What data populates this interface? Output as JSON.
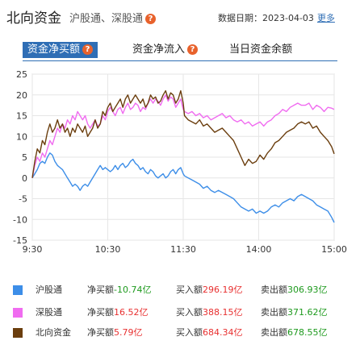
{
  "header": {
    "title": "北向资金",
    "subtitle": "沪股通、深股通",
    "date_label": "数据日期：",
    "date": "2023-04-03",
    "more": "更多"
  },
  "tabs": [
    {
      "label": "资金净买额",
      "active": true
    },
    {
      "label": "资金净流入",
      "active": false
    },
    {
      "label": "当日资金余额",
      "active": false
    }
  ],
  "legend": [
    {
      "name": "沪股通",
      "color": "#3d8ee8",
      "net_label": "净买额",
      "net": "-10.74亿",
      "buy_label": "买入额",
      "buy": "296.19亿",
      "sell_label": "卖出额",
      "sell": "306.93亿"
    },
    {
      "name": "深股通",
      "color": "#f06cf0",
      "net_label": "净买额",
      "net": "16.52亿",
      "buy_label": "买入额",
      "buy": "388.15亿",
      "sell_label": "卖出额",
      "sell": "371.62亿"
    },
    {
      "name": "北向资金",
      "color": "#6b3e0e",
      "net_label": "净买额",
      "net": "5.79亿",
      "buy_label": "买入额",
      "buy": "684.34亿",
      "sell_label": "卖出额",
      "sell": "678.55亿"
    }
  ],
  "chart_data": {
    "type": "line",
    "xticks": [
      "9:30",
      "10:30",
      "11:30",
      "14:00",
      "15:00"
    ],
    "ylim": [
      -15,
      25
    ],
    "yticks": [
      25,
      20,
      15,
      10,
      5,
      0,
      -5,
      -10,
      -15
    ],
    "x_count": 241,
    "series": [
      {
        "name": "沪股通",
        "color": "#3d8ee8",
        "points": [
          [
            0,
            0
          ],
          [
            2,
            1
          ],
          [
            4,
            2
          ],
          [
            6,
            3.5
          ],
          [
            8,
            4
          ],
          [
            10,
            3.5
          ],
          [
            12,
            5
          ],
          [
            14,
            6
          ],
          [
            16,
            5.5
          ],
          [
            18,
            4
          ],
          [
            20,
            3
          ],
          [
            22,
            2.5
          ],
          [
            24,
            2
          ],
          [
            26,
            1
          ],
          [
            28,
            0
          ],
          [
            30,
            -1
          ],
          [
            32,
            -2
          ],
          [
            34,
            -1.5
          ],
          [
            36,
            -2
          ],
          [
            38,
            -3
          ],
          [
            40,
            -2
          ],
          [
            42,
            -1.5
          ],
          [
            44,
            -2
          ],
          [
            46,
            -1
          ],
          [
            48,
            0
          ],
          [
            50,
            1
          ],
          [
            52,
            2
          ],
          [
            54,
            3
          ],
          [
            56,
            2
          ],
          [
            58,
            2.5
          ],
          [
            60,
            2
          ],
          [
            62,
            1.5
          ],
          [
            64,
            2
          ],
          [
            66,
            3
          ],
          [
            68,
            2
          ],
          [
            70,
            3
          ],
          [
            72,
            3.5
          ],
          [
            74,
            2.5
          ],
          [
            76,
            3
          ],
          [
            78,
            4
          ],
          [
            80,
            4.5
          ],
          [
            82,
            3.5
          ],
          [
            84,
            3
          ],
          [
            86,
            2
          ],
          [
            88,
            2.5
          ],
          [
            90,
            1.5
          ],
          [
            92,
            1
          ],
          [
            94,
            2
          ],
          [
            96,
            1.5
          ],
          [
            98,
            0.5
          ],
          [
            100,
            0
          ],
          [
            102,
            0.5
          ],
          [
            104,
            1
          ],
          [
            106,
            0
          ],
          [
            108,
            0.5
          ],
          [
            110,
            1.5
          ],
          [
            112,
            2
          ],
          [
            114,
            1
          ],
          [
            116,
            2
          ],
          [
            118,
            2.5
          ],
          [
            120,
            1
          ],
          [
            121,
            0.5
          ],
          [
            124,
            0
          ],
          [
            127,
            -0.5
          ],
          [
            130,
            -1
          ],
          [
            133,
            -1.5
          ],
          [
            136,
            -2.5
          ],
          [
            139,
            -2
          ],
          [
            142,
            -3
          ],
          [
            145,
            -3.5
          ],
          [
            148,
            -3
          ],
          [
            151,
            -3.5
          ],
          [
            154,
            -4
          ],
          [
            157,
            -4.5
          ],
          [
            160,
            -5
          ],
          [
            163,
            -6
          ],
          [
            166,
            -7
          ],
          [
            169,
            -7.5
          ],
          [
            172,
            -8
          ],
          [
            175,
            -7.5
          ],
          [
            178,
            -8.5
          ],
          [
            181,
            -8
          ],
          [
            184,
            -8.5
          ],
          [
            187,
            -8
          ],
          [
            190,
            -7
          ],
          [
            193,
            -6.5
          ],
          [
            196,
            -7
          ],
          [
            199,
            -6
          ],
          [
            202,
            -5.5
          ],
          [
            205,
            -5
          ],
          [
            208,
            -5.5
          ],
          [
            211,
            -4.5
          ],
          [
            214,
            -4
          ],
          [
            217,
            -4.5
          ],
          [
            220,
            -5
          ],
          [
            223,
            -5.5
          ],
          [
            226,
            -6.5
          ],
          [
            229,
            -7
          ],
          [
            232,
            -7.5
          ],
          [
            235,
            -8
          ],
          [
            238,
            -9.5
          ],
          [
            240,
            -10.74
          ]
        ]
      },
      {
        "name": "深股通",
        "color": "#f06cf0",
        "points": [
          [
            0,
            0
          ],
          [
            2,
            3
          ],
          [
            4,
            5
          ],
          [
            6,
            4
          ],
          [
            8,
            6
          ],
          [
            10,
            5
          ],
          [
            12,
            7
          ],
          [
            14,
            9
          ],
          [
            16,
            8
          ],
          [
            18,
            10
          ],
          [
            20,
            12
          ],
          [
            22,
            11
          ],
          [
            24,
            13
          ],
          [
            26,
            12
          ],
          [
            28,
            14
          ],
          [
            30,
            13
          ],
          [
            32,
            15
          ],
          [
            34,
            14
          ],
          [
            36,
            16
          ],
          [
            38,
            15
          ],
          [
            40,
            14
          ],
          [
            42,
            15
          ],
          [
            44,
            13
          ],
          [
            46,
            12
          ],
          [
            48,
            13
          ],
          [
            50,
            14
          ],
          [
            52,
            12.5
          ],
          [
            54,
            13
          ],
          [
            56,
            15
          ],
          [
            58,
            14
          ],
          [
            60,
            16
          ],
          [
            62,
            17
          ],
          [
            64,
            16
          ],
          [
            66,
            15
          ],
          [
            68,
            16.5
          ],
          [
            70,
            17
          ],
          [
            72,
            15.5
          ],
          [
            74,
            17
          ],
          [
            76,
            18
          ],
          [
            78,
            16.5
          ],
          [
            80,
            17
          ],
          [
            82,
            18
          ],
          [
            84,
            17.5
          ],
          [
            86,
            16
          ],
          [
            88,
            17
          ],
          [
            90,
            16.5
          ],
          [
            92,
            18
          ],
          [
            94,
            19
          ],
          [
            96,
            18
          ],
          [
            98,
            19
          ],
          [
            100,
            18.5
          ],
          [
            102,
            17.5
          ],
          [
            104,
            19
          ],
          [
            106,
            20
          ],
          [
            108,
            18.5
          ],
          [
            110,
            19.5
          ],
          [
            112,
            19
          ],
          [
            114,
            17
          ],
          [
            116,
            18
          ],
          [
            118,
            19
          ],
          [
            120,
            16.5
          ],
          [
            121,
            16
          ],
          [
            124,
            15.5
          ],
          [
            127,
            16
          ],
          [
            130,
            15
          ],
          [
            133,
            15.5
          ],
          [
            136,
            14.5
          ],
          [
            139,
            15
          ],
          [
            142,
            14
          ],
          [
            145,
            14.5
          ],
          [
            148,
            15
          ],
          [
            151,
            15.5
          ],
          [
            154,
            14.5
          ],
          [
            157,
            15
          ],
          [
            160,
            14
          ],
          [
            163,
            13.5
          ],
          [
            166,
            14
          ],
          [
            169,
            13
          ],
          [
            172,
            13.5
          ],
          [
            175,
            12.5
          ],
          [
            178,
            13
          ],
          [
            181,
            13.5
          ],
          [
            184,
            12.5
          ],
          [
            187,
            13.5
          ],
          [
            190,
            14
          ],
          [
            193,
            15
          ],
          [
            196,
            15.5
          ],
          [
            199,
            16.5
          ],
          [
            202,
            16
          ],
          [
            205,
            17
          ],
          [
            208,
            17.5
          ],
          [
            211,
            18
          ],
          [
            214,
            17.5
          ],
          [
            217,
            17.5
          ],
          [
            220,
            18
          ],
          [
            223,
            16.5
          ],
          [
            226,
            17.5
          ],
          [
            229,
            17
          ],
          [
            232,
            16
          ],
          [
            235,
            17
          ],
          [
            238,
            16.8
          ],
          [
            240,
            16.52
          ]
        ]
      },
      {
        "name": "北向资金",
        "color": "#6b3e0e",
        "points": [
          [
            0,
            0
          ],
          [
            2,
            4
          ],
          [
            4,
            7
          ],
          [
            6,
            6
          ],
          [
            8,
            9
          ],
          [
            10,
            8
          ],
          [
            12,
            11
          ],
          [
            14,
            13
          ],
          [
            16,
            11
          ],
          [
            18,
            12
          ],
          [
            20,
            14
          ],
          [
            22,
            12
          ],
          [
            24,
            13
          ],
          [
            26,
            11
          ],
          [
            28,
            12
          ],
          [
            30,
            10
          ],
          [
            32,
            12
          ],
          [
            34,
            11
          ],
          [
            36,
            13
          ],
          [
            38,
            12
          ],
          [
            40,
            11
          ],
          [
            42,
            12.5
          ],
          [
            44,
            10
          ],
          [
            46,
            11
          ],
          [
            48,
            12
          ],
          [
            50,
            14
          ],
          [
            52,
            12
          ],
          [
            54,
            13
          ],
          [
            56,
            16
          ],
          [
            58,
            15
          ],
          [
            60,
            17
          ],
          [
            62,
            18
          ],
          [
            64,
            16
          ],
          [
            66,
            17
          ],
          [
            68,
            18
          ],
          [
            70,
            19
          ],
          [
            72,
            17
          ],
          [
            74,
            19
          ],
          [
            76,
            20
          ],
          [
            78,
            18
          ],
          [
            80,
            19
          ],
          [
            82,
            20
          ],
          [
            84,
            19
          ],
          [
            86,
            18
          ],
          [
            88,
            19
          ],
          [
            90,
            17
          ],
          [
            92,
            18
          ],
          [
            94,
            20
          ],
          [
            96,
            19
          ],
          [
            98,
            19.5
          ],
          [
            100,
            18
          ],
          [
            102,
            18.5
          ],
          [
            104,
            20
          ],
          [
            106,
            21
          ],
          [
            108,
            19
          ],
          [
            110,
            20.5
          ],
          [
            112,
            20
          ],
          [
            114,
            18
          ],
          [
            116,
            19
          ],
          [
            118,
            21
          ],
          [
            120,
            18
          ],
          [
            121,
            15
          ],
          [
            124,
            14
          ],
          [
            127,
            13.5
          ],
          [
            130,
            13
          ],
          [
            133,
            14
          ],
          [
            136,
            12.5
          ],
          [
            139,
            13
          ],
          [
            142,
            12
          ],
          [
            145,
            11
          ],
          [
            148,
            11.5
          ],
          [
            151,
            12
          ],
          [
            154,
            11
          ],
          [
            157,
            10
          ],
          [
            160,
            9
          ],
          [
            163,
            7
          ],
          [
            166,
            5
          ],
          [
            169,
            3
          ],
          [
            172,
            4.5
          ],
          [
            175,
            3.5
          ],
          [
            178,
            4
          ],
          [
            181,
            5.5
          ],
          [
            184,
            4.5
          ],
          [
            187,
            6
          ],
          [
            190,
            7
          ],
          [
            193,
            8.5
          ],
          [
            196,
            9
          ],
          [
            199,
            10
          ],
          [
            202,
            11
          ],
          [
            205,
            11.5
          ],
          [
            208,
            12
          ],
          [
            211,
            13
          ],
          [
            214,
            13.5
          ],
          [
            217,
            13
          ],
          [
            220,
            13.5
          ],
          [
            223,
            12
          ],
          [
            226,
            12.5
          ],
          [
            229,
            11
          ],
          [
            232,
            10
          ],
          [
            235,
            9
          ],
          [
            238,
            7.5
          ],
          [
            240,
            5.79
          ]
        ]
      }
    ]
  }
}
